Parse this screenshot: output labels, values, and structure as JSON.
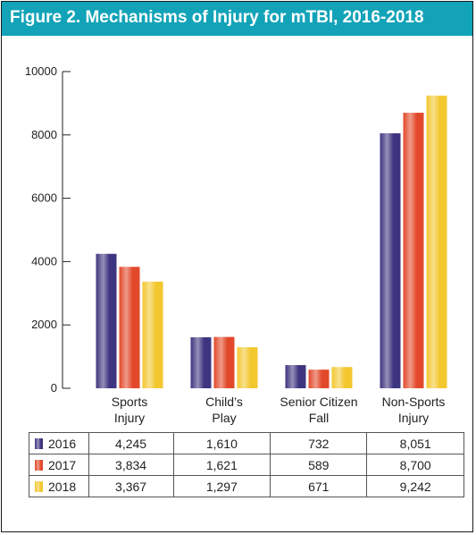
{
  "title": "Figure 2. Mechanisms of Injury for mTBI, 2016-2018",
  "colors": {
    "title_bar": "#12a3b8",
    "2016": "#3e3580",
    "2017": "#e2492a",
    "2018": "#f3c72e"
  },
  "chart_data": {
    "type": "bar",
    "title": "Figure 2. Mechanisms of Injury for mTBI, 2016-2018",
    "categories": [
      {
        "line1": "Sports",
        "line2": "Injury"
      },
      {
        "line1": "Child’s",
        "line2": "Play"
      },
      {
        "line1": "Senior Citizen",
        "line2": "Fall"
      },
      {
        "line1": "Non-Sports",
        "line2": "Injury"
      }
    ],
    "series": [
      {
        "name": "2016",
        "values": [
          4245,
          1610,
          732,
          8051
        ],
        "display": [
          "4,245",
          "1,610",
          "732",
          "8,051"
        ]
      },
      {
        "name": "2017",
        "values": [
          3834,
          1621,
          589,
          8700
        ],
        "display": [
          "3,834",
          "1,621",
          "589",
          "8,700"
        ]
      },
      {
        "name": "2018",
        "values": [
          3367,
          1297,
          671,
          9242
        ],
        "display": [
          "3,367",
          "1,297",
          "671",
          "9,242"
        ]
      }
    ],
    "yticks": [
      "0",
      "2000",
      "4000",
      "6000",
      "8000",
      "10000"
    ],
    "ylim": [
      0,
      10000
    ],
    "grid": false,
    "legend": "table-below"
  }
}
